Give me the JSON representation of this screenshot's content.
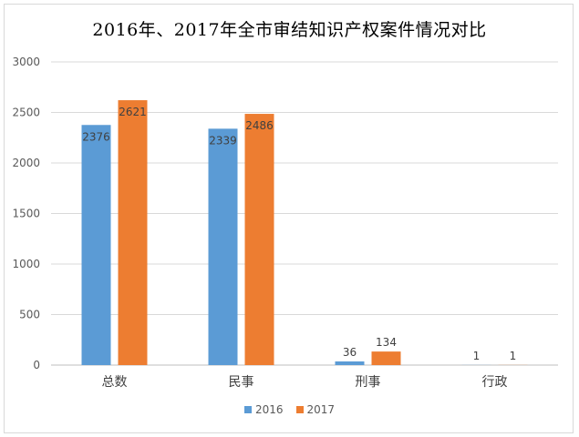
{
  "chart_data": {
    "type": "bar",
    "title": "2016年、2017年全市审结知识产权案件情况对比",
    "categories": [
      "总数",
      "民事",
      "刑事",
      "行政"
    ],
    "series": [
      {
        "name": "2016",
        "values": [
          2376,
          2339,
          36,
          1
        ],
        "color": "#5b9bd5"
      },
      {
        "name": "2017",
        "values": [
          2621,
          2486,
          134,
          1
        ],
        "color": "#ed7d31"
      }
    ],
    "ylim": [
      0,
      3000
    ],
    "yticks": [
      0,
      500,
      1000,
      1500,
      2000,
      2500,
      3000
    ],
    "grid": true,
    "legend_position": "bottom"
  }
}
